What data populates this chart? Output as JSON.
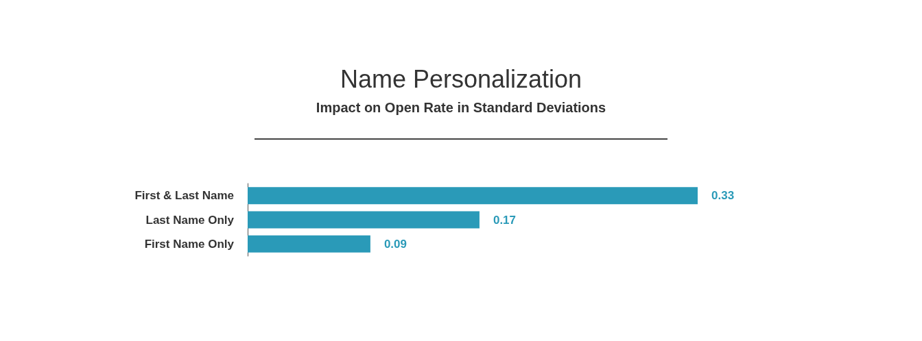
{
  "chart_data": {
    "type": "bar",
    "orientation": "horizontal",
    "title": "Name Personalization",
    "subtitle": "Impact on Open Rate in Standard Deviations",
    "categories": [
      "First & Last Name",
      "Last Name Only",
      "First Name Only"
    ],
    "values": [
      0.33,
      0.17,
      0.09
    ],
    "color": "#2a9ab8",
    "data_labels": true
  }
}
